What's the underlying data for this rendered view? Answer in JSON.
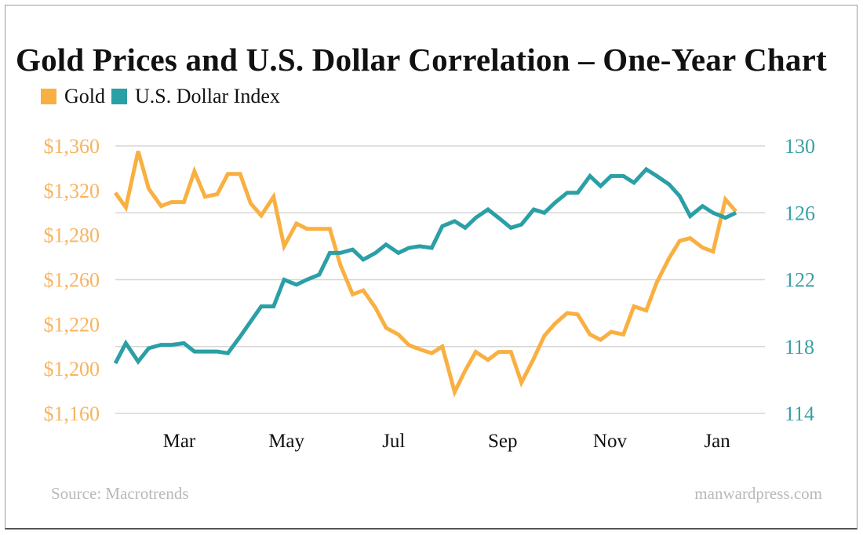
{
  "chart_data": {
    "type": "line",
    "title": "Gold Prices and U.S. Dollar Correlation – One-Year Chart",
    "legend_placement": "top-left",
    "grid": "horizontal",
    "x": [
      "2018-01-25",
      "2018-01-31",
      "2018-02-07",
      "2018-02-13",
      "2018-02-20",
      "2018-02-26",
      "2018-03-05",
      "2018-03-11",
      "2018-03-17",
      "2018-03-24",
      "2018-03-30",
      "2018-04-06",
      "2018-04-12",
      "2018-04-18",
      "2018-04-25",
      "2018-05-01",
      "2018-05-08",
      "2018-05-14",
      "2018-05-21",
      "2018-05-27",
      "2018-06-02",
      "2018-06-09",
      "2018-06-15",
      "2018-06-22",
      "2018-06-28",
      "2018-07-05",
      "2018-07-11",
      "2018-07-17",
      "2018-07-24",
      "2018-07-30",
      "2018-08-06",
      "2018-08-12",
      "2018-08-18",
      "2018-08-25",
      "2018-08-31",
      "2018-09-07",
      "2018-09-13",
      "2018-09-20",
      "2018-09-26",
      "2018-10-02",
      "2018-10-09",
      "2018-10-15",
      "2018-10-22",
      "2018-10-28",
      "2018-11-03",
      "2018-11-10",
      "2018-11-16",
      "2018-11-23",
      "2018-11-29",
      "2018-12-06",
      "2018-12-12",
      "2018-12-18",
      "2018-12-25",
      "2018-12-31",
      "2019-01-07",
      "2019-01-13"
    ],
    "x_ticks": [
      {
        "label": "Mar",
        "date": "2018-03-01"
      },
      {
        "label": "May",
        "date": "2018-05-01"
      },
      {
        "label": "Jul",
        "date": "2018-07-01"
      },
      {
        "label": "Sep",
        "date": "2018-09-01"
      },
      {
        "label": "Nov",
        "date": "2018-11-01"
      },
      {
        "label": "Jan",
        "date": "2019-01-01"
      }
    ],
    "series": [
      {
        "name": "Gold",
        "axis": "left",
        "color": "#F9B042",
        "values": [
          1325,
          1314,
          1356,
          1328,
          1315,
          1318,
          1318,
          1341,
          1322,
          1324,
          1339,
          1339,
          1317,
          1308,
          1322,
          1285,
          1302,
          1298,
          1298,
          1298,
          1271,
          1249,
          1252,
          1239,
          1224,
          1219,
          1211,
          1208,
          1205,
          1210,
          1176,
          1192,
          1206,
          1200,
          1206,
          1206,
          1183,
          1201,
          1218,
          1227,
          1235,
          1234,
          1219,
          1215,
          1221,
          1219,
          1240,
          1237,
          1258,
          1276,
          1289,
          1291,
          1284,
          1281,
          1320,
          1311
        ]
      },
      {
        "name": "U.S. Dollar Index",
        "axis": "right",
        "color": "#2A9FA6",
        "values": [
          117.0,
          118.2,
          117.1,
          117.9,
          118.1,
          118.1,
          118.2,
          117.7,
          117.7,
          117.7,
          117.6,
          118.6,
          119.5,
          120.4,
          120.4,
          122.0,
          121.7,
          122.0,
          122.3,
          123.6,
          123.6,
          123.8,
          123.2,
          123.6,
          124.1,
          123.6,
          123.9,
          124.0,
          123.9,
          125.2,
          125.5,
          125.1,
          125.7,
          126.2,
          125.7,
          125.1,
          125.3,
          126.2,
          126.0,
          126.6,
          127.2,
          127.2,
          128.2,
          127.6,
          128.2,
          128.2,
          127.8,
          128.6,
          128.2,
          127.7,
          127.0,
          125.8,
          126.4,
          126.0,
          125.7,
          126.0
        ]
      }
    ],
    "y_left": {
      "range": [
        1160,
        1360
      ],
      "tick_labels": [
        "$1,360",
        "$1,320",
        "$1,280",
        "$1,260",
        "$1,220",
        "$1,200",
        "$1,160"
      ],
      "color": "#F6B461"
    },
    "y_right": {
      "range": [
        114,
        130
      ],
      "tick_labels": [
        "130",
        "126",
        "122",
        "118",
        "114"
      ],
      "color": "#3A9FA5"
    }
  },
  "footer": {
    "source": "Source: Macrotrends",
    "site": "manwardpress.com"
  }
}
